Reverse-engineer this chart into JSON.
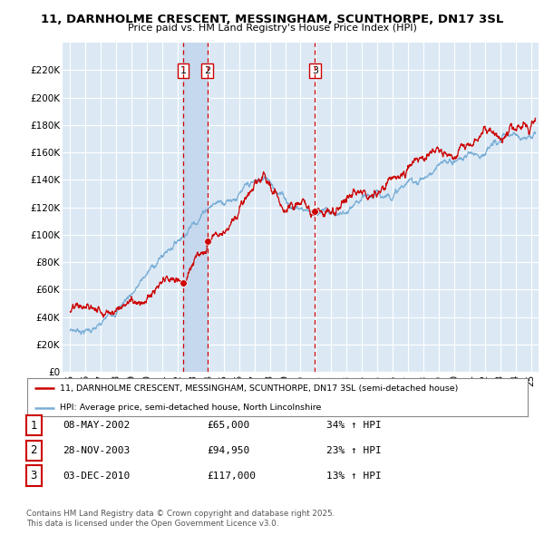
{
  "title_line1": "11, DARNHOLME CRESCENT, MESSINGHAM, SCUNTHORPE, DN17 3SL",
  "title_line2": "Price paid vs. HM Land Registry's House Price Index (HPI)",
  "bg_color": "#dce9f5",
  "grid_color": "#ffffff",
  "red_line_color": "#cc0000",
  "blue_line_color": "#7aaed6",
  "highlight_color": "#c5d8ed",
  "ylim": [
    0,
    240000
  ],
  "yticks": [
    0,
    20000,
    40000,
    60000,
    80000,
    100000,
    120000,
    140000,
    160000,
    180000,
    200000,
    220000
  ],
  "xlim_start": 1994.5,
  "xlim_end": 2025.5,
  "xticks": [
    1995,
    1996,
    1997,
    1998,
    1999,
    2000,
    2001,
    2002,
    2003,
    2004,
    2005,
    2006,
    2007,
    2008,
    2009,
    2010,
    2011,
    2012,
    2013,
    2014,
    2015,
    2016,
    2017,
    2018,
    2019,
    2020,
    2021,
    2022,
    2023,
    2024,
    2025
  ],
  "purchases": [
    {
      "num": 1,
      "date": "08-MAY-2002",
      "price": 65000,
      "pct": "34%",
      "x": 2002.36
    },
    {
      "num": 2,
      "date": "28-NOV-2003",
      "price": 94950,
      "pct": "23%",
      "x": 2003.92
    },
    {
      "num": 3,
      "date": "03-DEC-2010",
      "price": 117000,
      "pct": "13%",
      "x": 2010.93
    }
  ],
  "legend_label_red": "11, DARNHOLME CRESCENT, MESSINGHAM, SCUNTHORPE, DN17 3SL (semi-detached house)",
  "legend_label_blue": "HPI: Average price, semi-detached house, North Lincolnshire",
  "footer_line1": "Contains HM Land Registry data © Crown copyright and database right 2025.",
  "footer_line2": "This data is licensed under the Open Government Licence v3.0.",
  "vline_color": "#cc0000"
}
